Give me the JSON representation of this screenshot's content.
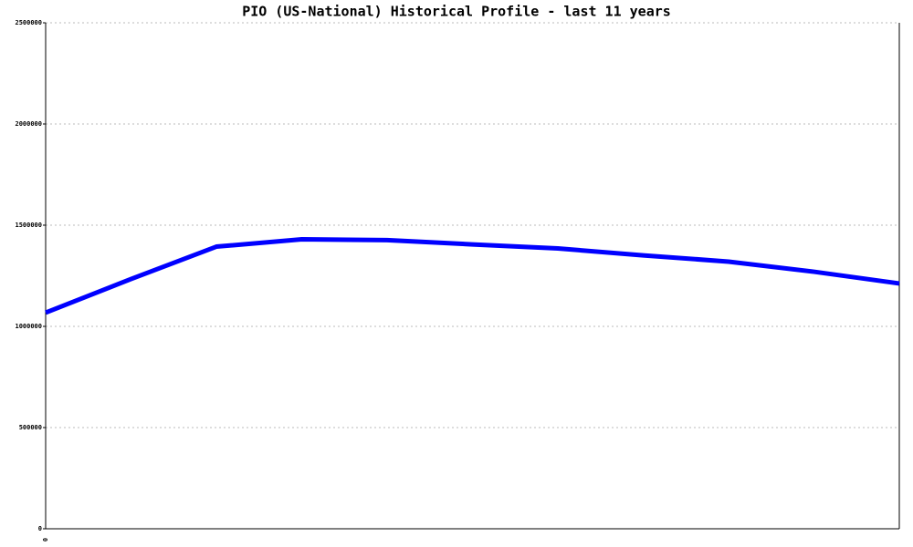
{
  "chart_data": {
    "type": "line",
    "title": "PIO (US-National) Historical Profile - last 11 years",
    "categories": [
      "0",
      null,
      null,
      null,
      null,
      null,
      null,
      null,
      null,
      null,
      null
    ],
    "series": [
      {
        "name": "PIO",
        "color": "#0000ff",
        "values": [
          1068000,
          1234000,
          1394000,
          1430000,
          1426000,
          1405000,
          1385000,
          1351000,
          1320000,
          1270000,
          1212000
        ]
      }
    ],
    "ylim": [
      0,
      2500000
    ],
    "yticks": [
      0,
      500000,
      1000000,
      1500000,
      2000000,
      2500000
    ],
    "grid": true
  }
}
